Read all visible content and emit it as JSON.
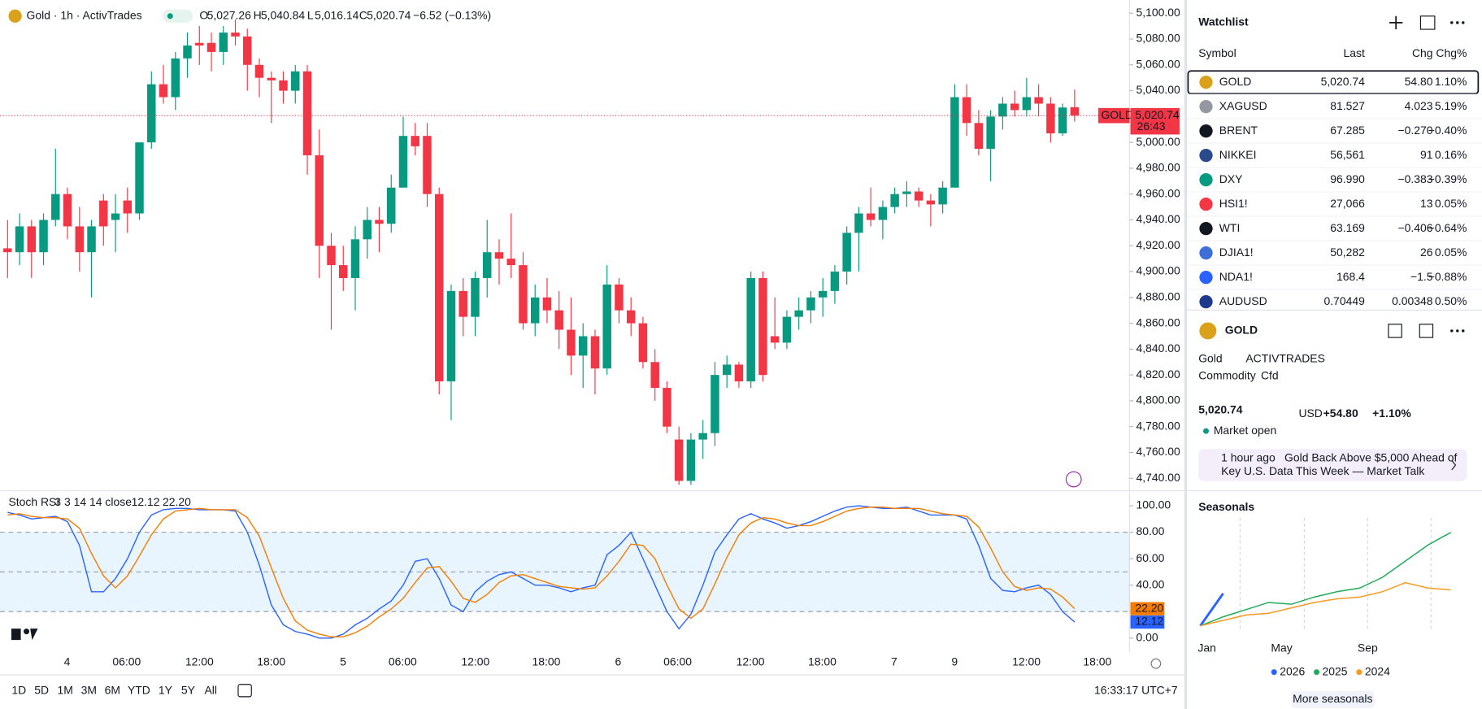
{
  "header": {
    "symbol": "Gold · 1h · ActivTrades",
    "o_label": "O",
    "o": "5,027.26",
    "h_label": "H",
    "h": "5,040.84",
    "l_label": "L",
    "l": "5,016.14",
    "c_label": "C",
    "c": "5,020.74",
    "change": "−6.52 (−0.13%)"
  },
  "chart_data": [
    {
      "type": "candlestick",
      "up_color": "#089981",
      "down_color": "#f23645",
      "candles": [
        [
          4918,
          4940,
          4895,
          4915
        ],
        [
          4915,
          4945,
          4905,
          4935
        ],
        [
          4935,
          4940,
          4895,
          4915
        ],
        [
          4915,
          4945,
          4905,
          4940
        ],
        [
          4940,
          4995,
          4935,
          4960
        ],
        [
          4960,
          4965,
          4925,
          4935
        ],
        [
          4935,
          4950,
          4900,
          4915
        ],
        [
          4915,
          4940,
          4880,
          4935
        ],
        [
          4955,
          4960,
          4920,
          4935
        ],
        [
          4940,
          4960,
          4915,
          4945
        ],
        [
          4955,
          4965,
          4930,
          4945
        ],
        [
          4945,
          5000,
          4940,
          5000
        ],
        [
          5000,
          5055,
          4995,
          5045
        ],
        [
          5045,
          5060,
          5030,
          5035
        ],
        [
          5035,
          5070,
          5025,
          5065
        ],
        [
          5065,
          5085,
          5050,
          5075
        ],
        [
          5077,
          5090,
          5060,
          5075
        ],
        [
          5077,
          5085,
          5055,
          5070
        ],
        [
          5070,
          5090,
          5060,
          5085
        ],
        [
          5085,
          5095,
          5075,
          5082
        ],
        [
          5082,
          5088,
          5040,
          5060
        ],
        [
          5060,
          5065,
          5035,
          5050
        ],
        [
          5050,
          5055,
          5015,
          5048
        ],
        [
          5048,
          5055,
          5030,
          5040
        ],
        [
          5040,
          5060,
          5030,
          5055
        ],
        [
          5055,
          5060,
          4975,
          4990
        ],
        [
          4990,
          5010,
          4895,
          4920
        ],
        [
          4920,
          4930,
          4855,
          4905
        ],
        [
          4905,
          4920,
          4885,
          4895
        ],
        [
          4895,
          4935,
          4870,
          4925
        ],
        [
          4925,
          4950,
          4910,
          4940
        ],
        [
          4940,
          4950,
          4915,
          4937
        ],
        [
          4937,
          4975,
          4930,
          4965
        ],
        [
          4965,
          5020,
          4965,
          5005
        ],
        [
          5005,
          5015,
          4990,
          4997
        ],
        [
          5005,
          5015,
          4950,
          4960
        ],
        [
          4960,
          4965,
          4805,
          4815
        ],
        [
          4815,
          4890,
          4785,
          4885
        ],
        [
          4885,
          4895,
          4850,
          4865
        ],
        [
          4865,
          4900,
          4850,
          4895
        ],
        [
          4895,
          4940,
          4880,
          4915
        ],
        [
          4915,
          4925,
          4890,
          4910
        ],
        [
          4910,
          4945,
          4895,
          4905
        ],
        [
          4905,
          4915,
          4855,
          4860
        ],
        [
          4860,
          4890,
          4850,
          4880
        ],
        [
          4880,
          4895,
          4860,
          4870
        ],
        [
          4870,
          4885,
          4840,
          4855
        ],
        [
          4855,
          4880,
          4820,
          4835
        ],
        [
          4835,
          4860,
          4810,
          4850
        ],
        [
          4850,
          4855,
          4805,
          4825
        ],
        [
          4825,
          4905,
          4820,
          4890
        ],
        [
          4890,
          4895,
          4860,
          4870
        ],
        [
          4870,
          4880,
          4850,
          4860
        ],
        [
          4860,
          4865,
          4825,
          4830
        ],
        [
          4830,
          4840,
          4800,
          4810
        ],
        [
          4810,
          4815,
          4775,
          4780
        ],
        [
          4770,
          4780,
          4735,
          4738
        ],
        [
          4738,
          4775,
          4735,
          4770
        ],
        [
          4770,
          4785,
          4755,
          4775
        ],
        [
          4775,
          4830,
          4765,
          4820
        ],
        [
          4820,
          4835,
          4810,
          4828
        ],
        [
          4828,
          4830,
          4810,
          4815
        ],
        [
          4815,
          4900,
          4810,
          4895
        ],
        [
          4895,
          4900,
          4815,
          4820
        ],
        [
          4850,
          4880,
          4840,
          4845
        ],
        [
          4845,
          4870,
          4840,
          4865
        ],
        [
          4865,
          4880,
          4855,
          4870
        ],
        [
          4870,
          4885,
          4860,
          4880
        ],
        [
          4880,
          4895,
          4865,
          4885
        ],
        [
          4885,
          4905,
          4875,
          4900
        ],
        [
          4900,
          4935,
          4890,
          4930
        ],
        [
          4930,
          4950,
          4900,
          4945
        ],
        [
          4945,
          4965,
          4935,
          4940
        ],
        [
          4940,
          4955,
          4925,
          4950
        ],
        [
          4950,
          4965,
          4945,
          4960
        ],
        [
          4960,
          4970,
          4950,
          4962
        ],
        [
          4962,
          4965,
          4950,
          4955
        ],
        [
          4955,
          4960,
          4935,
          4952
        ],
        [
          4952,
          4970,
          4945,
          4965
        ],
        [
          4965,
          5045,
          4965,
          5035
        ],
        [
          5035,
          5045,
          5005,
          5015
        ],
        [
          5015,
          5025,
          4990,
          4995
        ],
        [
          4995,
          5025,
          4970,
          5020
        ],
        [
          5020,
          5035,
          5010,
          5030
        ],
        [
          5030,
          5040,
          5020,
          5025
        ],
        [
          5025,
          5050,
          5020,
          5035
        ],
        [
          5035,
          5045,
          5020,
          5030
        ],
        [
          5030,
          5035,
          5000,
          5007
        ],
        [
          5007,
          5030,
          5005,
          5027
        ],
        [
          5027.26,
          5040.84,
          5016.14,
          5020.74
        ]
      ],
      "ylim": [
        4731.2,
        5110.2
      ],
      "yticks": [
        {
          "value": 5100,
          "label": "5,100.00"
        },
        {
          "value": 5080,
          "label": "5,080.00"
        },
        {
          "value": 5060,
          "label": "5,060.00"
        },
        {
          "value": 5040,
          "label": "5,040.00"
        },
        {
          "value": 5020,
          "label": "5,020.00"
        },
        {
          "value": 5000,
          "label": "5,000.00"
        },
        {
          "value": 4980,
          "label": "4,980.00"
        },
        {
          "value": 4960,
          "label": "4,960.00"
        },
        {
          "value": 4940,
          "label": "4,940.00"
        },
        {
          "value": 4920,
          "label": "4,920.00"
        },
        {
          "value": 4900,
          "label": "4,900.00"
        },
        {
          "value": 4880,
          "label": "4,880.00"
        },
        {
          "value": 4860,
          "label": "4,860.00"
        },
        {
          "value": 4840,
          "label": "4,840.00"
        },
        {
          "value": 4820,
          "label": "4,820.00"
        },
        {
          "value": 4800,
          "label": "4,800.00"
        },
        {
          "value": 4780,
          "label": "4,780.00"
        },
        {
          "value": 4760,
          "label": "4,760.00"
        },
        {
          "value": 4740,
          "label": "4,740.00"
        }
      ],
      "price_tag": {
        "symbol": "GOLD",
        "price": "5,020.74",
        "countdown": "26:43"
      },
      "x_labels": [
        "4",
        "06:00",
        "12:00",
        "18:00",
        "5",
        "06:00",
        "12:00",
        "18:00",
        "6",
        "06:00",
        "12:00",
        "18:00",
        "7",
        "9",
        "12:00",
        "18:00"
      ]
    },
    {
      "type": "line",
      "title": "Stoch RSI",
      "params": "3 3 14 14 close",
      "ylim": [
        -10.7,
        110.7
      ],
      "yticks": [
        {
          "value": 100,
          "label": "100.00"
        },
        {
          "value": 80,
          "label": "80.00"
        },
        {
          "value": 60,
          "label": "60.00"
        },
        {
          "value": 40,
          "label": "40.00"
        },
        {
          "value": 20,
          "label": "20.00"
        },
        {
          "value": 0,
          "label": "0.00"
        }
      ],
      "band": [
        20,
        80
      ],
      "levels": [
        80,
        50,
        20
      ],
      "series": [
        {
          "color": "#2962ff",
          "value_label": "12.12",
          "values": [
            95,
            93,
            90,
            91,
            92,
            88,
            70,
            35,
            35,
            45,
            60,
            80,
            93,
            97,
            98,
            98,
            97,
            97,
            97,
            96,
            80,
            55,
            25,
            10,
            5,
            3,
            0,
            0,
            3,
            10,
            15,
            22,
            28,
            40,
            58,
            60,
            45,
            25,
            20,
            35,
            43,
            48,
            50,
            45,
            40,
            40,
            38,
            35,
            38,
            40,
            63,
            70,
            80,
            60,
            40,
            20,
            7,
            18,
            40,
            65,
            78,
            90,
            94,
            90,
            87,
            83,
            85,
            88,
            92,
            96,
            99,
            100,
            99,
            98,
            98,
            99,
            96,
            93,
            93,
            93,
            90,
            70,
            45,
            36,
            35,
            38,
            40,
            33,
            20,
            12.12
          ]
        },
        {
          "color": "#f57c00",
          "value_label": "22.20",
          "values": [
            93,
            94,
            92,
            91,
            91,
            90,
            83,
            64,
            47,
            38,
            47,
            62,
            78,
            90,
            96,
            97,
            98,
            97,
            97,
            97,
            91,
            77,
            53,
            30,
            13,
            6,
            3,
            1,
            1,
            4,
            9,
            16,
            22,
            30,
            42,
            53,
            54,
            43,
            30,
            27,
            33,
            42,
            47,
            48,
            45,
            42,
            39,
            38,
            37,
            38,
            47,
            58,
            71,
            70,
            60,
            40,
            22,
            15,
            22,
            41,
            61,
            78,
            87,
            91,
            90,
            87,
            85,
            85,
            88,
            92,
            96,
            98,
            99,
            99,
            98,
            98,
            98,
            96,
            94,
            93,
            92,
            84,
            68,
            50,
            39,
            36,
            38,
            37,
            31,
            22.2
          ]
        }
      ]
    }
  ],
  "watchlist": {
    "title": "Watchlist",
    "columns": [
      "Symbol",
      "Last",
      "Chg",
      "Chg%"
    ],
    "rows": [
      [
        "GOLD",
        "5,020.74",
        "54.80",
        "1.10%"
      ],
      [
        "XAGUSD",
        "81.527",
        "4.023",
        "5.19%"
      ],
      [
        "BRENT",
        "67.285",
        "−0.270",
        "−0.40%"
      ],
      [
        "NIKKEI",
        "56,561",
        "91",
        "0.16%"
      ],
      [
        "DXY",
        "96.990",
        "−0.383",
        "−0.39%"
      ],
      [
        "HSI1!",
        "27,066",
        "13",
        "0.05%"
      ],
      [
        "WTI",
        "63.169",
        "−0.406",
        "−0.64%"
      ],
      [
        "DJIA1!",
        "50,282",
        "26",
        "0.05%"
      ],
      [
        "NDA1!",
        "168.4",
        "−1.5",
        "−0.88%"
      ],
      [
        "AUDUSD",
        "0.70449",
        "0.00348",
        "0.50%"
      ]
    ]
  },
  "detail": {
    "symbol": "GOLD",
    "name": "Gold",
    "exchange": "ACTIVTRADES",
    "category": "Commodity",
    "kind": "Cfd",
    "price": "5,020.74",
    "currency": "USD",
    "change": "+54.80",
    "change_pct": "+1.10%",
    "status": "Market open",
    "news": {
      "time": "1 hour ago",
      "lines": [
        "Gold Back Above $5,000 Ahead of",
        "Key U.S. Data This Week — Market Talk"
      ]
    }
  },
  "seasonals": {
    "title": "Seasonals",
    "months": [
      "Jan",
      "May",
      "Sep"
    ],
    "series": [
      {
        "name": "2026",
        "color": "#2962ff",
        "values": [
          0,
          18
        ]
      },
      {
        "name": "2025",
        "color": "#22ab5a",
        "values": [
          0,
          5,
          9,
          13,
          12,
          16,
          19,
          21,
          27,
          36,
          45,
          52
        ]
      },
      {
        "name": "2024",
        "color": "#f59a23",
        "values": [
          0,
          3,
          6,
          7,
          10,
          13,
          15,
          16,
          19,
          24,
          21,
          20
        ]
      }
    ],
    "more": "More seasonals"
  },
  "ranges": [
    "1D",
    "5D",
    "1M",
    "3M",
    "6M",
    "YTD",
    "1Y",
    "5Y",
    "All"
  ],
  "clock": "16:33:17 UTC+7"
}
